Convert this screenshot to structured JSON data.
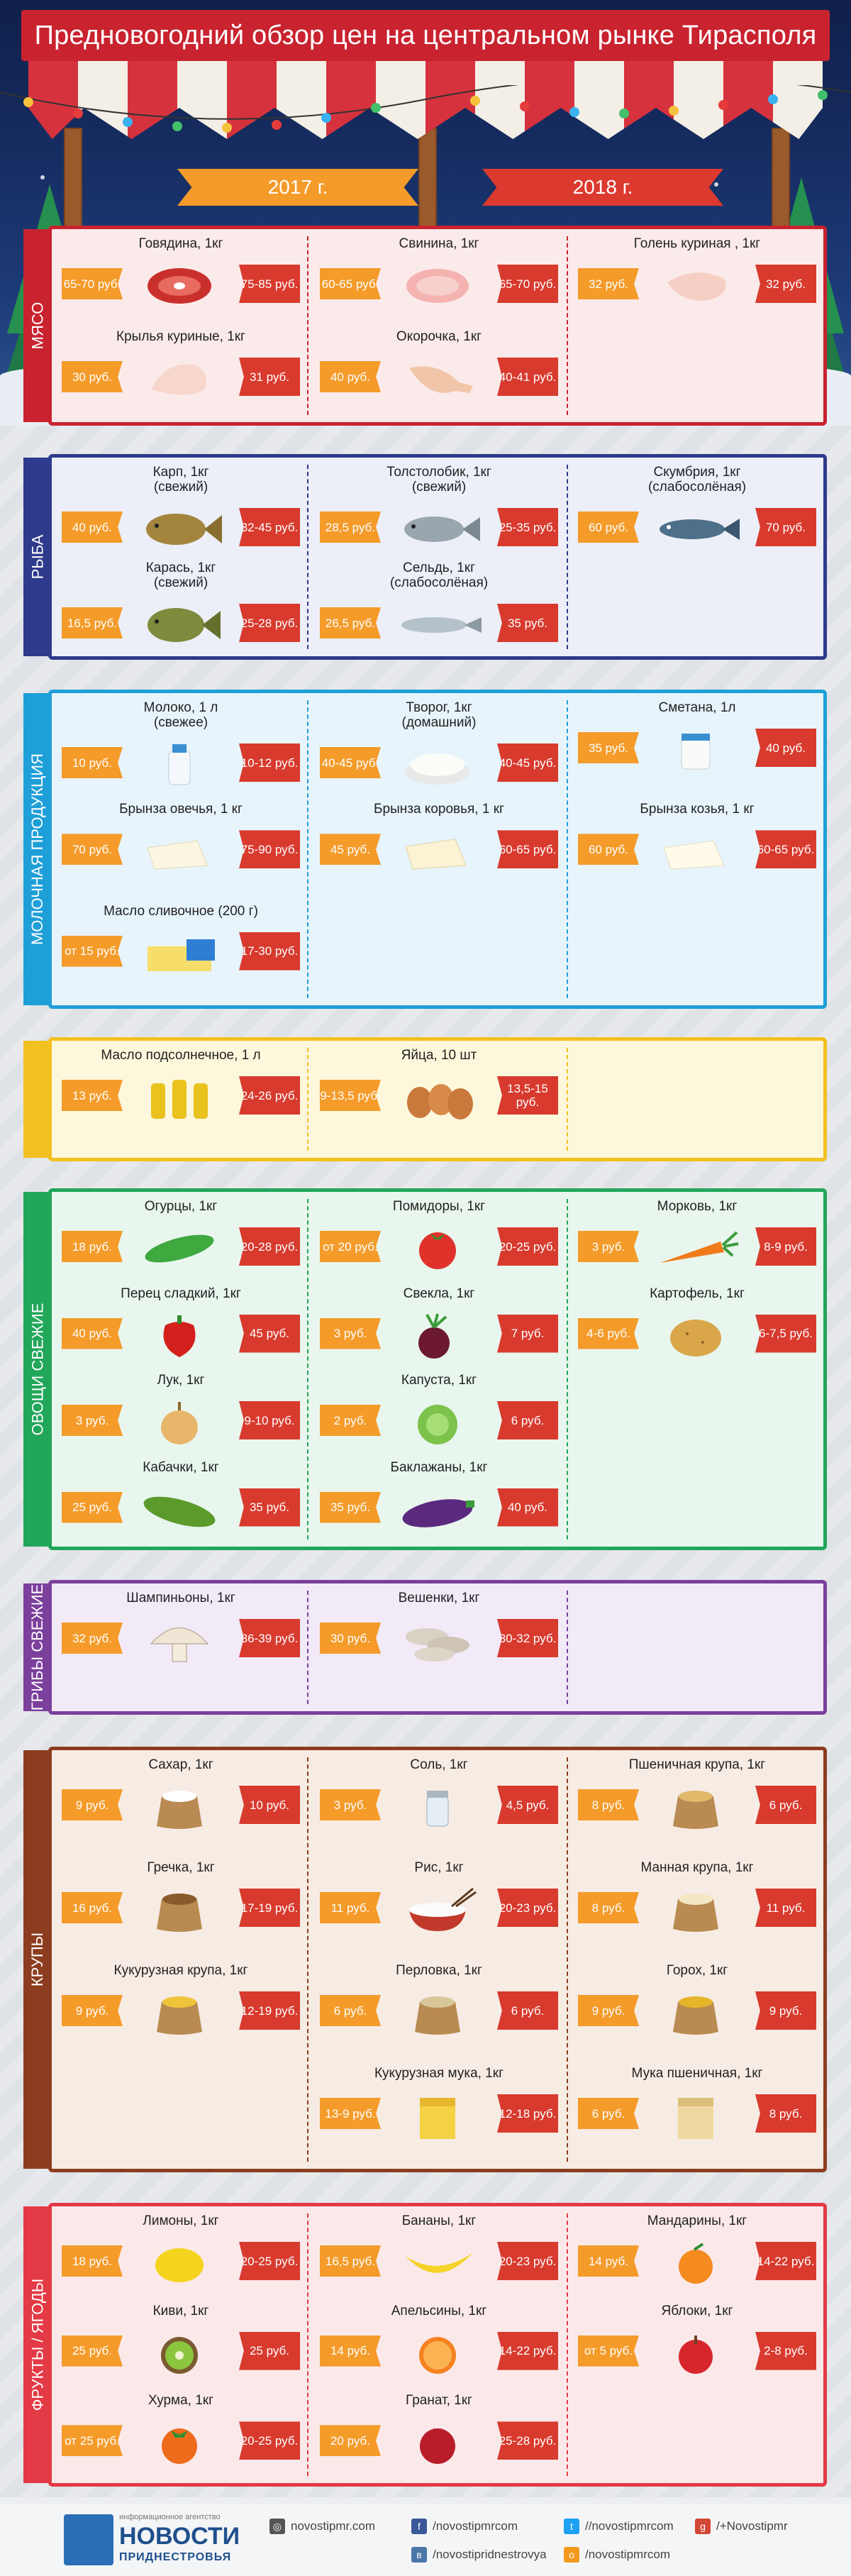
{
  "title": "Предновогодний обзор цен на центральном рынке Тирасполя",
  "years": {
    "left": "2017 г.",
    "right": "2018 г."
  },
  "colors": {
    "accent_2017": "#f49b2a",
    "accent_2018": "#d83a2e"
  },
  "sections": [
    {
      "label": "МЯСО",
      "color": "#c9232f",
      "bg": "#fbeaea",
      "items": [
        {
          "name": "Говядина, 1кг",
          "p17": "65-70 руб.",
          "p18": "75-85 руб.",
          "icon": "beef-icon"
        },
        {
          "name": "Свинина, 1кг",
          "p17": "60-65 руб.",
          "p18": "65-70 руб.",
          "icon": "pork-icon"
        },
        {
          "name": "Голень куриная , 1кг",
          "p17": "32 руб.",
          "p18": "32 руб.",
          "icon": "chicken-leg-icon"
        },
        {
          "name": "Крылья куриные, 1кг",
          "p17": "30 руб.",
          "p18": "31 руб.",
          "icon": "chicken-wings-icon"
        },
        {
          "name": "Окорочка, 1кг",
          "p17": "40 руб.",
          "p18": "40-41 руб.",
          "icon": "chicken-thigh-icon"
        }
      ]
    },
    {
      "label": "РЫБА",
      "color": "#2e3a8c",
      "bg": "#eceff8",
      "items": [
        {
          "name": "Карп, 1кг\n(свежий)",
          "p17": "40 руб.",
          "p18": "32-45 руб.",
          "icon": "carp-icon"
        },
        {
          "name": "Толстолобик, 1кг\n(свежий)",
          "p17": "28,5 руб.",
          "p18": "25-35 руб.",
          "icon": "silver-carp-icon"
        },
        {
          "name": "Скумбрия, 1кг\n(слабосолёная)",
          "p17": "60 руб.",
          "p18": "70 руб.",
          "icon": "mackerel-icon"
        },
        {
          "name": "Карась, 1кг\n(свежий)",
          "p17": "16,5 руб.",
          "p18": "25-28 руб.",
          "icon": "crucian-icon"
        },
        {
          "name": "Сельдь, 1кг\n(слабосолёная)",
          "p17": "26,5 руб.",
          "p18": "35 руб.",
          "icon": "herring-icon"
        }
      ]
    },
    {
      "label": "МОЛОЧНАЯ ПРОДУКЦИЯ",
      "color": "#1f9fd8",
      "bg": "#e7f4fb",
      "items": [
        {
          "name": "Молоко, 1 л\n(свежее)",
          "p17": "10 руб.",
          "p18": "10-12 руб.",
          "icon": "milk-icon"
        },
        {
          "name": "Творог, 1кг\n(домашний)",
          "p17": "40-45 руб.",
          "p18": "40-45 руб.",
          "icon": "cottage-cheese-icon"
        },
        {
          "name": "Сметана, 1л",
          "p17": "35 руб.",
          "p18": "40 руб.",
          "icon": "sour-cream-icon"
        },
        {
          "name": "Брынза овечья, 1 кг",
          "p17": "70 руб.",
          "p18": "75-90 руб.",
          "icon": "sheep-cheese-icon"
        },
        {
          "name": "Брынза коровья, 1 кг",
          "p17": "45 руб.",
          "p18": "60-65 руб.",
          "icon": "cow-cheese-icon"
        },
        {
          "name": "Брынза козья, 1 кг",
          "p17": "60 руб.",
          "p18": "60-65 руб.",
          "icon": "goat-cheese-icon"
        },
        {
          "name": "Масло сливочное (200 г)",
          "p17": "от 15 руб.",
          "p18": "17-30 руб.",
          "icon": "butter-icon"
        }
      ]
    },
    {
      "label": "",
      "color": "#f2c020",
      "bg": "#fdf7dc",
      "items": [
        {
          "name": "Масло подсолнечное, 1 л",
          "p17": "13 руб.",
          "p18": "24-26 руб.",
          "icon": "oil-icon"
        },
        {
          "name": "Яйца, 10 шт",
          "p17": "9-13,5 руб.",
          "p18": "13,5-15 руб.",
          "icon": "eggs-icon"
        }
      ]
    },
    {
      "label": "ОВОЩИ СВЕЖИЕ",
      "color": "#21a65a",
      "bg": "#e8f6ee",
      "items": [
        {
          "name": "Огурцы, 1кг",
          "p17": "18 руб.",
          "p18": "20-28 руб.",
          "icon": "cucumber-icon"
        },
        {
          "name": "Помидоры, 1кг",
          "p17": "от 20 руб.",
          "p18": "20-25 руб.",
          "icon": "tomato-icon"
        },
        {
          "name": "Морковь, 1кг",
          "p17": "3 руб.",
          "p18": "8-9 руб.",
          "icon": "carrot-icon"
        },
        {
          "name": "Перец сладкий, 1кг",
          "p17": "40 руб.",
          "p18": "45 руб.",
          "icon": "pepper-icon"
        },
        {
          "name": "Свекла, 1кг",
          "p17": "3 руб.",
          "p18": "7 руб.",
          "icon": "beet-icon"
        },
        {
          "name": "Картофель, 1кг",
          "p17": "4-6 руб.",
          "p18": "6-7,5 руб.",
          "icon": "potato-icon"
        },
        {
          "name": "Лук, 1кг",
          "p17": "3 руб.",
          "p18": "9-10 руб.",
          "icon": "onion-icon"
        },
        {
          "name": "Капуста, 1кг",
          "p17": "2 руб.",
          "p18": "6 руб.",
          "icon": "cabbage-icon"
        },
        {
          "name": "Кабачки, 1кг",
          "p17": "25 руб.",
          "p18": "35 руб.",
          "icon": "zucchini-icon"
        },
        {
          "name": "Баклажаны, 1кг",
          "p17": "35 руб.",
          "p18": "40 руб.",
          "icon": "eggplant-icon"
        }
      ]
    },
    {
      "label": "ГРИБЫ СВЕЖИЕ",
      "color": "#7b3f9c",
      "bg": "#f2eaf7",
      "items": [
        {
          "name": "Шампиньоны, 1кг",
          "p17": "32 руб.",
          "p18": "36-39 руб.",
          "icon": "champignon-icon"
        },
        {
          "name": "Вешенки, 1кг",
          "p17": "30 руб.",
          "p18": "30-32 руб.",
          "icon": "oyster-mushroom-icon"
        }
      ]
    },
    {
      "label": "КРУПЫ",
      "color": "#8c3d1f",
      "bg": "#f7ece4",
      "items": [
        {
          "name": "Сахар, 1кг",
          "p17": "9 руб.",
          "p18": "10 руб.",
          "icon": "sugar-sack-icon"
        },
        {
          "name": "Соль, 1кг",
          "p17": "3 руб.",
          "p18": "4,5 руб.",
          "icon": "salt-icon"
        },
        {
          "name": "Пшеничная крупа, 1кг",
          "p17": "8 руб.",
          "p18": "6 руб.",
          "icon": "wheat-groats-icon"
        },
        {
          "name": "Гречка, 1кг",
          "p17": "16 руб.",
          "p18": "17-19 руб.",
          "icon": "buckwheat-icon"
        },
        {
          "name": "Рис, 1кг",
          "p17": "11 руб.",
          "p18": "20-23 руб.",
          "icon": "rice-icon"
        },
        {
          "name": "Манная крупа, 1кг",
          "p17": "8 руб.",
          "p18": "11 руб.",
          "icon": "semolina-icon"
        },
        {
          "name": "Кукурузная крупа, 1кг",
          "p17": "9 руб.",
          "p18": "12-19 руб.",
          "icon": "corn-groats-icon"
        },
        {
          "name": "Перловка, 1кг",
          "p17": "6 руб.",
          "p18": "6 руб.",
          "icon": "barley-icon"
        },
        {
          "name": "Горох, 1кг",
          "p17": "9 руб.",
          "p18": "9 руб.",
          "icon": "peas-icon"
        },
        {
          "name": "Кукурузная мука, 1кг",
          "p17": "13-9 руб.",
          "p18": "12-18 руб.",
          "icon": "corn-flour-icon"
        },
        {
          "name": "Мука пшеничная, 1кг",
          "p17": "6 руб.",
          "p18": "8 руб.",
          "icon": "wheat-flour-icon"
        }
      ]
    },
    {
      "label": "ФРУКТЫ / ЯГОДЫ",
      "color": "#e33a45",
      "bg": "#fbe9ea",
      "items": [
        {
          "name": "Лимоны, 1кг",
          "p17": "18 руб.",
          "p18": "20-25 руб.",
          "icon": "lemon-icon"
        },
        {
          "name": "Бананы, 1кг",
          "p17": "16,5 руб.",
          "p18": "20-23 руб.",
          "icon": "banana-icon"
        },
        {
          "name": "Мандарины, 1кг",
          "p17": "14 руб.",
          "p18": "14-22 руб.",
          "icon": "mandarin-icon"
        },
        {
          "name": "Киви, 1кг",
          "p17": "25 руб.",
          "p18": "25 руб.",
          "icon": "kiwi-icon"
        },
        {
          "name": "Апельсины, 1кг",
          "p17": "14 руб.",
          "p18": "14-22 руб.",
          "icon": "orange-icon"
        },
        {
          "name": "Яблоки, 1кг",
          "p17": "от 5 руб.",
          "p18": "2-8 руб.",
          "icon": "apple-icon"
        },
        {
          "name": "Хурма, 1кг",
          "p17": "от 25 руб.",
          "p18": "20-25 руб.",
          "icon": "persimmon-icon"
        },
        {
          "name": "Гранат, 1кг",
          "p17": "20 руб.",
          "p18": "25-28 руб.",
          "icon": "pomegranate-icon"
        }
      ]
    }
  ],
  "footer": {
    "agency_small": "информационное агентство",
    "brand": "НОВОСТИ",
    "brand_sub": "ПРИДНЕСТРОВЬЯ",
    "site": "novostipmr.com",
    "facebook": "/novostipmrcom",
    "twitter": "//novostipmrcom",
    "gplus": "/+Novostipmr",
    "vk": "/novostipridnestrovya",
    "ok": "/novostipmrcom"
  }
}
